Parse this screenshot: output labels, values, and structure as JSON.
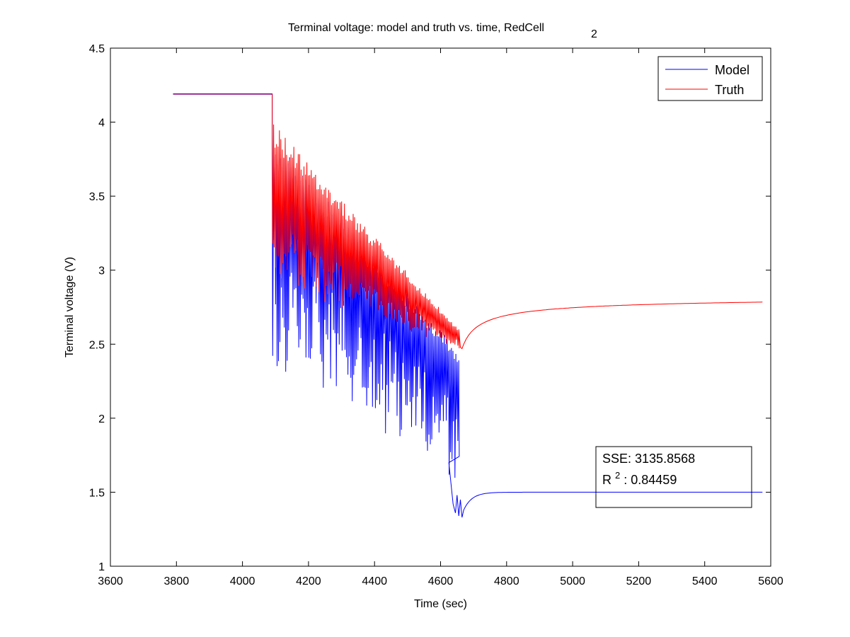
{
  "chart_data": {
    "type": "line",
    "title": "Terminal voltage: model and truth vs. time, RedCell",
    "title_subscript": "2",
    "xlabel": "Time (sec)",
    "ylabel": "Terminal voltage (V)",
    "xlim": [
      3600,
      5600
    ],
    "ylim": [
      1,
      4.5
    ],
    "xticks": [
      3600,
      3800,
      4000,
      4200,
      4400,
      4600,
      4800,
      5000,
      5200,
      5400,
      5600
    ],
    "yticks": [
      1,
      1.5,
      2,
      2.5,
      3,
      3.5,
      4,
      4.5
    ],
    "xtick_labels": [
      "3600",
      "3800",
      "4000",
      "4200",
      "4400",
      "4600",
      "4800",
      "5000",
      "5200",
      "5400",
      "5600"
    ],
    "ytick_labels": [
      "1",
      "1.5",
      "2",
      "2.5",
      "3",
      "3.5",
      "4",
      "4.5"
    ],
    "grid": false,
    "legend_position": "top-right",
    "series": [
      {
        "name": "Model",
        "color": "#0000ff",
        "rest_value": 4.19,
        "rest_range": [
          3790,
          4090
        ],
        "pulse_range": [
          4090,
          4665
        ],
        "pulse_start_max": 3.9,
        "pulse_start_min": 2.6,
        "pulse_end_max": 2.45,
        "pulse_end_min": 1.9,
        "min_value": 1.33,
        "recovery_value": 1.5,
        "end_x": 5575
      },
      {
        "name": "Truth",
        "color": "#ff0000",
        "rest_value": 4.19,
        "rest_range": [
          3790,
          4090
        ],
        "pulse_range": [
          4090,
          4665
        ],
        "pulse_start_max": 4.0,
        "pulse_start_min": 2.9,
        "pulse_end_max": 2.6,
        "pulse_end_min": 2.47,
        "min_value": 2.47,
        "recovery_value": 2.84,
        "end_x": 5575
      }
    ],
    "annotations": {
      "sse_label": "SSE: 3135.8568",
      "r2_prefix": "R",
      "r2_superscript": "2",
      "r2_value": ": 0.84459"
    }
  }
}
